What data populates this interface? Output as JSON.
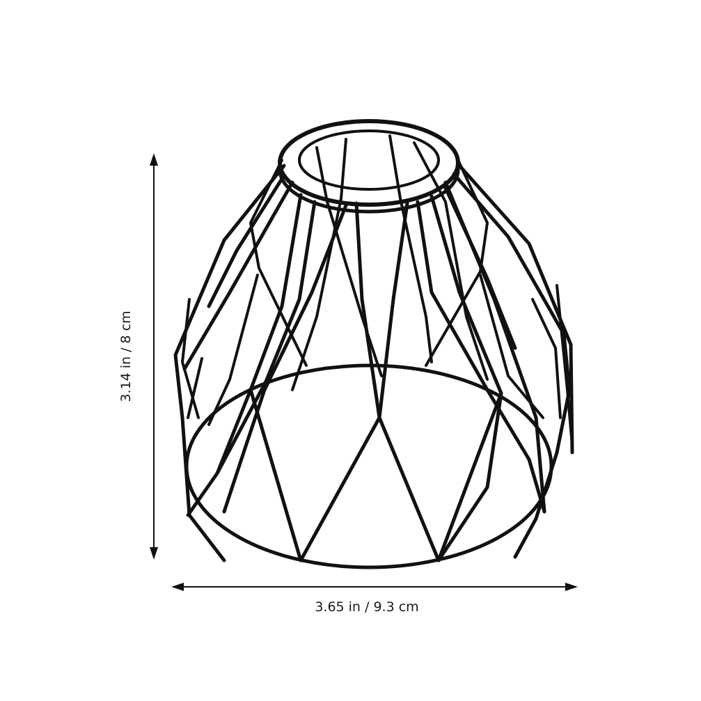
{
  "dimensions": {
    "height_label": "3.14 in / 8 cm",
    "width_label": "3.65 in / 9.3 cm"
  },
  "product": {
    "type": "wire-cage-lamp-shade",
    "color": "#111111"
  },
  "colors": {
    "background": "#ffffff",
    "wire": "#111111",
    "dimension_line": "#111111"
  }
}
